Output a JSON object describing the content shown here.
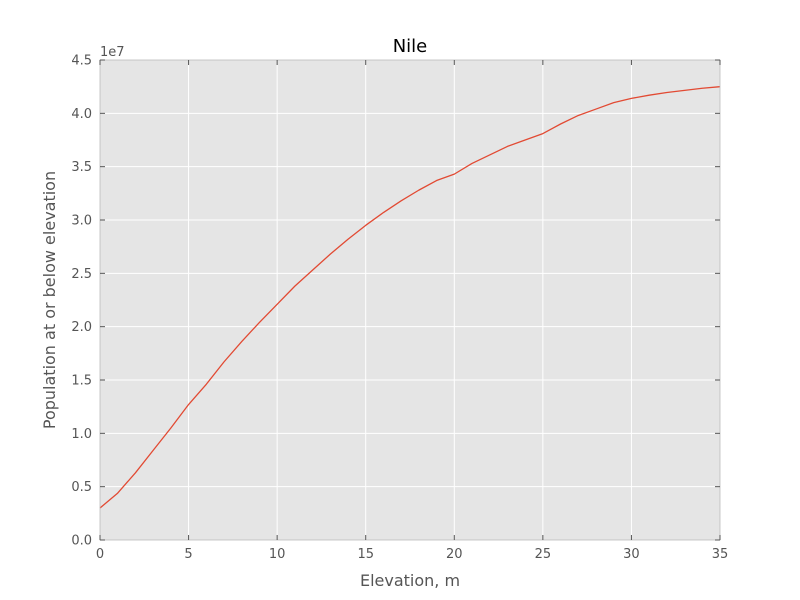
{
  "chart_data": {
    "type": "line",
    "title": "Nile",
    "xlabel": "Elevation, m",
    "ylabel": "Population at or below elevation",
    "y_offset_label": "1e7",
    "xlim": [
      0,
      35
    ],
    "ylim": [
      0,
      45000000
    ],
    "x_ticks": [
      0,
      5,
      10,
      15,
      20,
      25,
      30,
      35
    ],
    "x_tick_labels": [
      "0",
      "5",
      "10",
      "15",
      "20",
      "25",
      "30",
      "35"
    ],
    "y_ticks": [
      0,
      5000000,
      10000000,
      15000000,
      20000000,
      25000000,
      30000000,
      35000000,
      40000000,
      45000000
    ],
    "y_tick_labels": [
      "0.0",
      "0.5",
      "1.0",
      "1.5",
      "2.0",
      "2.5",
      "3.0",
      "3.5",
      "4.0",
      "4.5"
    ],
    "grid": true,
    "background_color": "#e5e5e5",
    "grid_color": "#ffffff",
    "series": [
      {
        "color": "#e24a33",
        "x": [
          0,
          1,
          2,
          3,
          4,
          5,
          6,
          7,
          8,
          9,
          10,
          11,
          12,
          13,
          14,
          15,
          16,
          17,
          18,
          19,
          20,
          21,
          22,
          23,
          24,
          25,
          26,
          27,
          28,
          29,
          30,
          31,
          32,
          33,
          34,
          35
        ],
        "values": [
          3000000,
          4400000,
          6300000,
          8400000,
          10500000,
          12700000,
          14600000,
          16700000,
          18600000,
          20400000,
          22100000,
          23800000,
          25300000,
          26800000,
          28200000,
          29500000,
          30700000,
          31800000,
          32800000,
          33700000,
          34300000,
          35300000,
          36100000,
          36900000,
          37500000,
          38100000,
          39000000,
          39800000,
          40400000,
          41000000,
          41400000,
          41700000,
          41950000,
          42150000,
          42350000,
          42500000
        ]
      }
    ]
  }
}
